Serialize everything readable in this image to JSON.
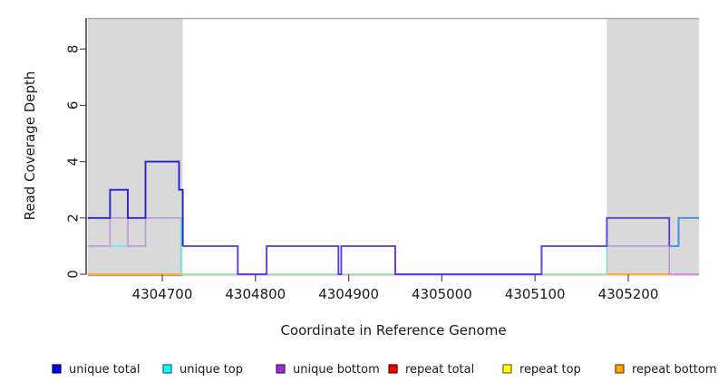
{
  "chart_data": {
    "type": "line",
    "subtype": "step-coverage",
    "title": "",
    "xlabel": "Coordinate in Reference Genome",
    "ylabel": "Read Coverage Depth",
    "xlim": [
      4304620,
      4305276
    ],
    "ylim": [
      0,
      9
    ],
    "x_ticks": [
      4304700,
      4304800,
      4304900,
      4305000,
      4305100,
      4305200
    ],
    "y_ticks": [
      0,
      2,
      4,
      6,
      8
    ],
    "grid": false,
    "legend_position": "bottom",
    "shaded_region_color": "#d9d9d9",
    "cap_line_color": "#a9a9a9",
    "shaded_regions": [
      {
        "from": 4304620,
        "to": 4304722
      },
      {
        "from": 4305177,
        "to": 4305276
      }
    ],
    "series": [
      {
        "name": "unique total",
        "color": "#0000ee",
        "steps": [
          [
            4304620,
            2
          ],
          [
            4304644,
            3
          ],
          [
            4304663,
            2
          ],
          [
            4304682,
            4
          ],
          [
            4304718,
            3
          ],
          [
            4304722,
            1
          ],
          [
            4304781,
            0
          ],
          [
            4304812,
            1
          ],
          [
            4304889,
            0
          ],
          [
            4304892,
            1
          ],
          [
            4304950,
            0
          ],
          [
            4305107,
            1
          ],
          [
            4305177,
            2
          ],
          [
            4305244,
            1
          ],
          [
            4305254,
            2
          ],
          [
            4305276,
            2
          ]
        ]
      },
      {
        "name": "unique top",
        "color": "#00ffff",
        "steps": [
          [
            4304620,
            1
          ],
          [
            4304682,
            2
          ],
          [
            4304720,
            0
          ],
          [
            4305177,
            1
          ],
          [
            4305254,
            2
          ],
          [
            4305276,
            2
          ]
        ]
      },
      {
        "name": "unique bottom",
        "color": "#9932cc",
        "steps": [
          [
            4304620,
            1
          ],
          [
            4304644,
            2
          ],
          [
            4304663,
            1
          ],
          [
            4304682,
            2
          ],
          [
            4304722,
            1
          ],
          [
            4304781,
            0
          ],
          [
            4304812,
            1
          ],
          [
            4304889,
            0
          ],
          [
            4304892,
            1
          ],
          [
            4304950,
            0
          ],
          [
            4305107,
            1
          ],
          [
            4305244,
            0
          ],
          [
            4305276,
            0
          ]
        ]
      },
      {
        "name": "repeat total",
        "color": "#ee0000",
        "steps": [
          [
            4304620,
            0
          ],
          [
            4305276,
            0
          ]
        ]
      },
      {
        "name": "repeat top",
        "color": "#ffff00",
        "steps": [
          [
            4304620,
            0
          ],
          [
            4305276,
            0
          ]
        ]
      },
      {
        "name": "repeat bottom",
        "color": "#ffa500",
        "steps": [
          [
            4304620,
            0
          ],
          [
            4305276,
            0
          ]
        ]
      }
    ],
    "render_segments": [
      {
        "name": "under-axis-left",
        "color": "#8e8e8e",
        "width": 1,
        "points": [
          [
            4304620,
            -0.05
          ],
          [
            4304722,
            -0.05
          ]
        ]
      },
      {
        "name": "under-axis-right",
        "color": "#eec9d9",
        "width": 1,
        "points": [
          [
            4304722,
            -0.05
          ],
          [
            4305276,
            -0.05
          ]
        ]
      },
      {
        "name": "baseline-orange-left",
        "color": "#ff9c1c",
        "width": 1.6,
        "points": [
          [
            4304620,
            0
          ],
          [
            4304722,
            0
          ]
        ]
      },
      {
        "name": "baseline-green-mid",
        "color": "#8fd49a",
        "width": 1.4,
        "points": [
          [
            4304722,
            0
          ],
          [
            4305177,
            0
          ]
        ]
      },
      {
        "name": "baseline-orange-right",
        "color": "#ff9c1c",
        "width": 1.6,
        "points": [
          [
            4305177,
            0
          ],
          [
            4305244,
            0
          ]
        ]
      },
      {
        "name": "baseline-pink-right",
        "color": "#dd5580",
        "width": 1.4,
        "points": [
          [
            4305244,
            0
          ],
          [
            4305276,
            0
          ]
        ]
      },
      {
        "name": "unique-top-left",
        "color": "#5ee6e6",
        "width": 1.4,
        "points": [
          [
            4304620,
            1
          ],
          [
            4304682,
            1
          ],
          [
            4304682,
            2
          ],
          [
            4304720,
            2
          ],
          [
            4304720,
            0
          ]
        ]
      },
      {
        "name": "unique-top-right",
        "color": "#7adede",
        "width": 1.4,
        "points": [
          [
            4305177,
            0
          ],
          [
            4305177,
            1
          ],
          [
            4305254,
            1
          ],
          [
            4305254,
            2
          ],
          [
            4305276,
            2
          ]
        ]
      },
      {
        "name": "unique-bottom",
        "color": "#c490dd",
        "width": 1.5,
        "points": [
          [
            4304620,
            1
          ],
          [
            4304644,
            1
          ],
          [
            4304644,
            2
          ],
          [
            4304663,
            2
          ],
          [
            4304663,
            1
          ],
          [
            4304682,
            1
          ],
          [
            4304682,
            2
          ],
          [
            4304722,
            2
          ],
          [
            4304722,
            1
          ],
          [
            4304781,
            1
          ],
          [
            4304781,
            0
          ],
          [
            4304812,
            0
          ],
          [
            4304812,
            1
          ],
          [
            4304889,
            1
          ],
          [
            4304889,
            0
          ],
          [
            4304892,
            0
          ],
          [
            4304892,
            1
          ],
          [
            4304950,
            1
          ],
          [
            4304950,
            0
          ],
          [
            4305107,
            0
          ],
          [
            4305107,
            1
          ],
          [
            4305244,
            1
          ],
          [
            4305244,
            0
          ],
          [
            4305276,
            0
          ]
        ]
      },
      {
        "name": "unique-total-gray1",
        "color": "#2222d8",
        "width": 1.9,
        "points": [
          [
            4304620,
            2
          ],
          [
            4304644,
            2
          ],
          [
            4304644,
            3
          ],
          [
            4304663,
            3
          ],
          [
            4304663,
            2
          ],
          [
            4304682,
            2
          ],
          [
            4304682,
            4
          ],
          [
            4304718,
            4
          ],
          [
            4304718,
            3
          ],
          [
            4304722,
            3
          ],
          [
            4304722,
            1
          ]
        ]
      },
      {
        "name": "unique-total-mid",
        "color": "#5c40e4",
        "width": 1.9,
        "points": [
          [
            4304722,
            1
          ],
          [
            4304781,
            1
          ],
          [
            4304781,
            0
          ],
          [
            4304812,
            0
          ],
          [
            4304812,
            1
          ],
          [
            4304889,
            1
          ],
          [
            4304889,
            0
          ],
          [
            4304892,
            0
          ],
          [
            4304892,
            1
          ],
          [
            4304950,
            1
          ],
          [
            4304950,
            0
          ],
          [
            4305107,
            0
          ],
          [
            4305107,
            1
          ],
          [
            4305177,
            1
          ],
          [
            4305177,
            2
          ],
          [
            4305244,
            2
          ],
          [
            4305244,
            1
          ]
        ]
      },
      {
        "name": "unique-total-right",
        "color": "#3f8cf0",
        "width": 1.9,
        "points": [
          [
            4305244,
            1
          ],
          [
            4305254,
            1
          ],
          [
            4305254,
            2
          ],
          [
            4305276,
            2
          ]
        ]
      }
    ]
  },
  "legend": {
    "items": [
      {
        "label": "unique total",
        "fill": "#0000ee",
        "border": "#00005e"
      },
      {
        "label": "unique top",
        "fill": "#00ffff",
        "border": "#006e6e"
      },
      {
        "label": "unique bottom",
        "fill": "#9932cc",
        "border": "#461058"
      },
      {
        "label": "repeat total",
        "fill": "#ee0000",
        "border": "#5e0000"
      },
      {
        "label": "repeat top",
        "fill": "#ffff00",
        "border": "#6e6e00"
      },
      {
        "label": "repeat bottom",
        "fill": "#ffa500",
        "border": "#6e4700"
      }
    ]
  }
}
